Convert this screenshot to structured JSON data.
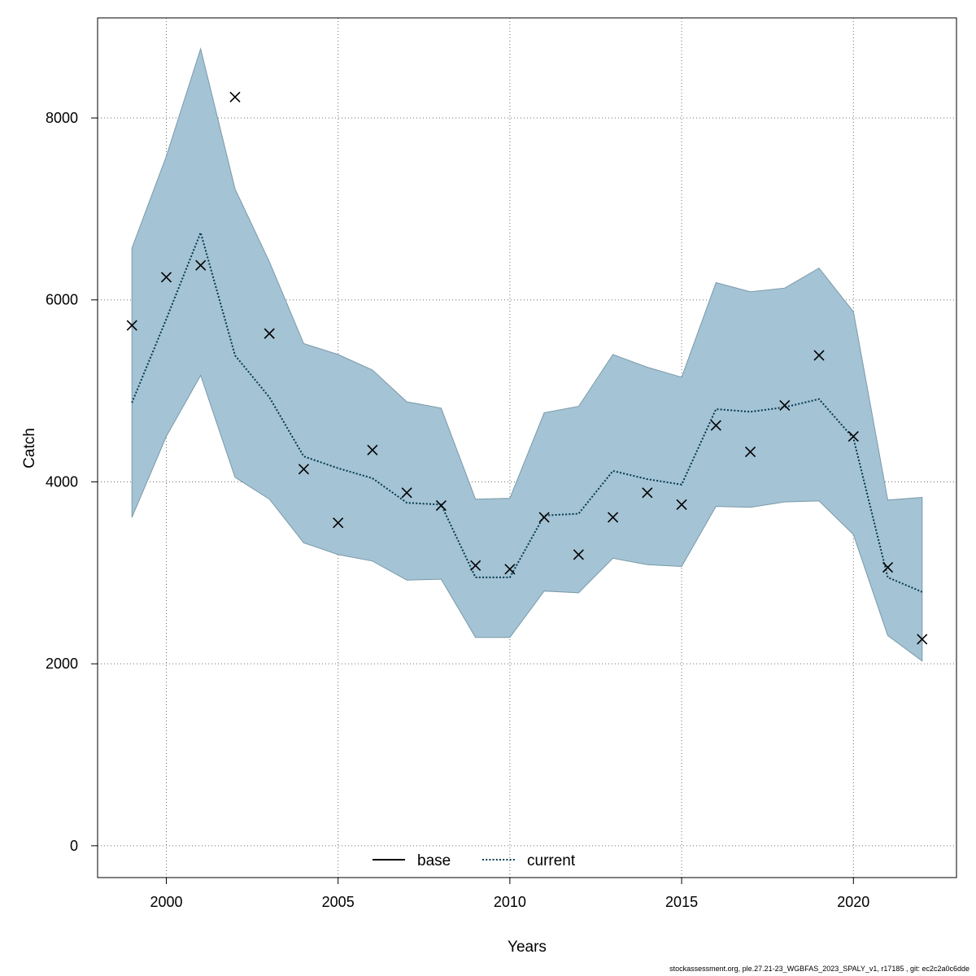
{
  "chart_data": {
    "type": "line",
    "xlabel": "Years",
    "ylabel": "Catch",
    "xlim": [
      1998,
      2023
    ],
    "ylim": [
      -350,
      9100
    ],
    "xticks": [
      2000,
      2005,
      2010,
      2015,
      2020
    ],
    "yticks": [
      0,
      2000,
      4000,
      6000,
      8000
    ],
    "grid": true,
    "legend_position": "bottom-center",
    "colors": {
      "band": "#a4c3d4",
      "band_edge": "#7a9aaa",
      "current_line": "#00384d",
      "base_line": "#000000",
      "observed": "#000000"
    },
    "x": [
      1999,
      2000,
      2001,
      2002,
      2003,
      2004,
      2005,
      2006,
      2007,
      2008,
      2009,
      2010,
      2011,
      2012,
      2013,
      2014,
      2015,
      2016,
      2017,
      2018,
      2019,
      2020,
      2021,
      2022
    ],
    "series": [
      {
        "name": "base",
        "style": "solid",
        "values": [
          4870,
          5790,
          6740,
          5390,
          4930,
          4280,
          4150,
          4040,
          3770,
          3750,
          2950,
          2950,
          3630,
          3650,
          4120,
          4030,
          3970,
          4800,
          4770,
          4820,
          4910,
          4480,
          2950,
          2790
        ]
      },
      {
        "name": "current",
        "style": "dotted",
        "values": [
          4870,
          5790,
          6740,
          5390,
          4930,
          4280,
          4150,
          4040,
          3770,
          3750,
          2950,
          2950,
          3630,
          3650,
          4120,
          4030,
          3970,
          4800,
          4770,
          4820,
          4910,
          4480,
          2950,
          2790
        ]
      }
    ],
    "band_upper": [
      6570,
      7580,
      8760,
      7220,
      6420,
      5520,
      5400,
      5230,
      4880,
      4810,
      3810,
      3820,
      4760,
      4830,
      5400,
      5260,
      5150,
      6190,
      6090,
      6130,
      6350,
      5870,
      3800,
      3830
    ],
    "band_lower": [
      3610,
      4500,
      5170,
      4050,
      3810,
      3330,
      3200,
      3130,
      2920,
      2930,
      2290,
      2290,
      2800,
      2780,
      3160,
      3090,
      3070,
      3730,
      3720,
      3780,
      3790,
      3420,
      2310,
      2030
    ],
    "observed": [
      5720,
      6250,
      6380,
      8230,
      5630,
      4140,
      3550,
      4350,
      3880,
      3740,
      3080,
      3040,
      3610,
      3200,
      3610,
      3880,
      3750,
      4620,
      4330,
      4840,
      5390,
      4500,
      3060,
      2270
    ]
  },
  "footer": {
    "note": "stockassessment.org, ple.27.21-23_WGBFAS_2023_SPALY_v1, r17185 , git: ec2c2a0c6dde"
  }
}
